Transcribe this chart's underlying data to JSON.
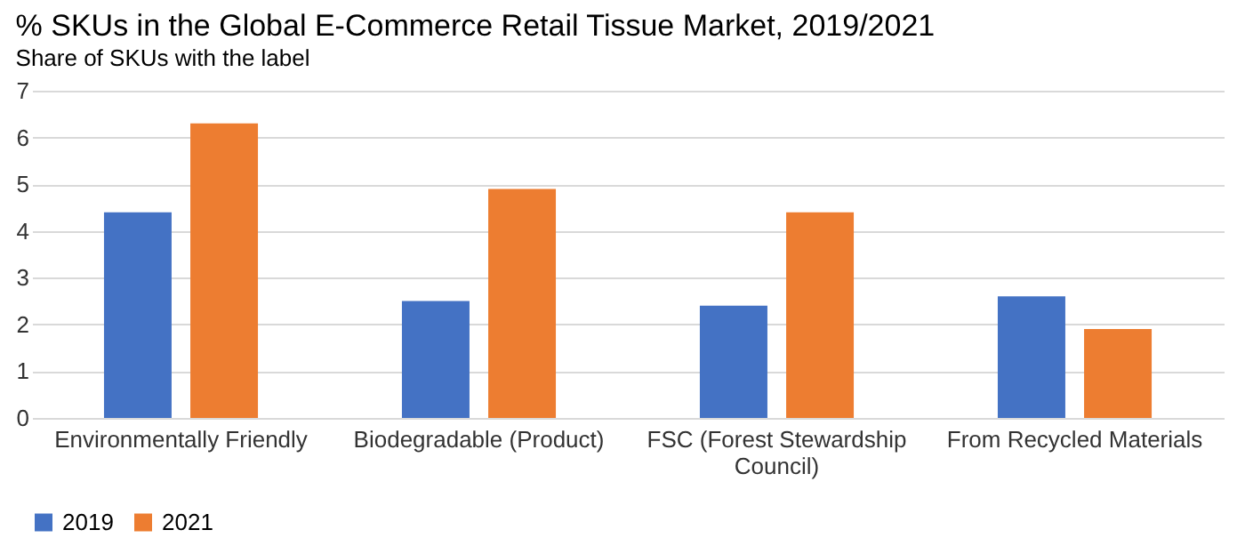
{
  "chart_data": {
    "type": "bar",
    "title": "% SKUs in the Global E-Commerce Retail Tissue Market, 2019/2021",
    "subtitle": "Share of SKUs with the label",
    "categories": [
      "Environmentally Friendly",
      "Biodegradable (Product)",
      "FSC (Forest Stewardship Council)",
      "From Recycled Materials"
    ],
    "series": [
      {
        "name": "2019",
        "color": "#4472c4",
        "values": [
          4.4,
          2.5,
          2.4,
          2.6
        ]
      },
      {
        "name": "2021",
        "color": "#ed7d31",
        "values": [
          6.3,
          4.9,
          4.4,
          1.9
        ]
      }
    ],
    "ylim": [
      0,
      7
    ],
    "yticks": [
      0,
      1,
      2,
      3,
      4,
      5,
      6,
      7
    ],
    "grid": "y",
    "legend": "bottom"
  }
}
